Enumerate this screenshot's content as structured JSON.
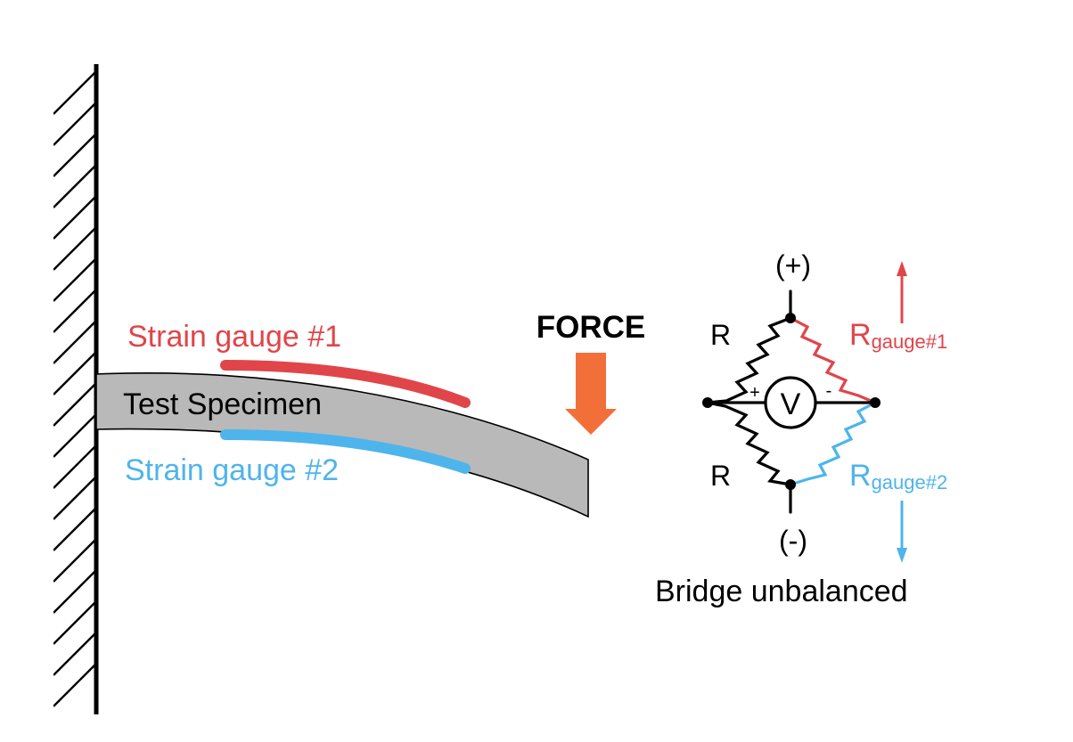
{
  "labels": {
    "gauge1": "Strain gauge #1",
    "gauge2": "Strain gauge #2",
    "specimen": "Test Specimen",
    "force": "FORCE",
    "plus": "(+)",
    "minus": "(-)",
    "r_left_top": "R",
    "r_left_bottom": "R",
    "r_gauge1_main": "R",
    "r_gauge1_sub": "gauge#1",
    "r_gauge2_main": "R",
    "r_gauge2_sub": "gauge#2",
    "meter": "V",
    "meter_plus": "+",
    "meter_minus": "-",
    "status": "Bridge unbalanced"
  },
  "colors": {
    "gauge1": "#e0454a",
    "gauge2": "#4eb4ec",
    "force": "#f26f3a",
    "specimen_fill": "#b9b9b9",
    "wire": "#000000"
  }
}
